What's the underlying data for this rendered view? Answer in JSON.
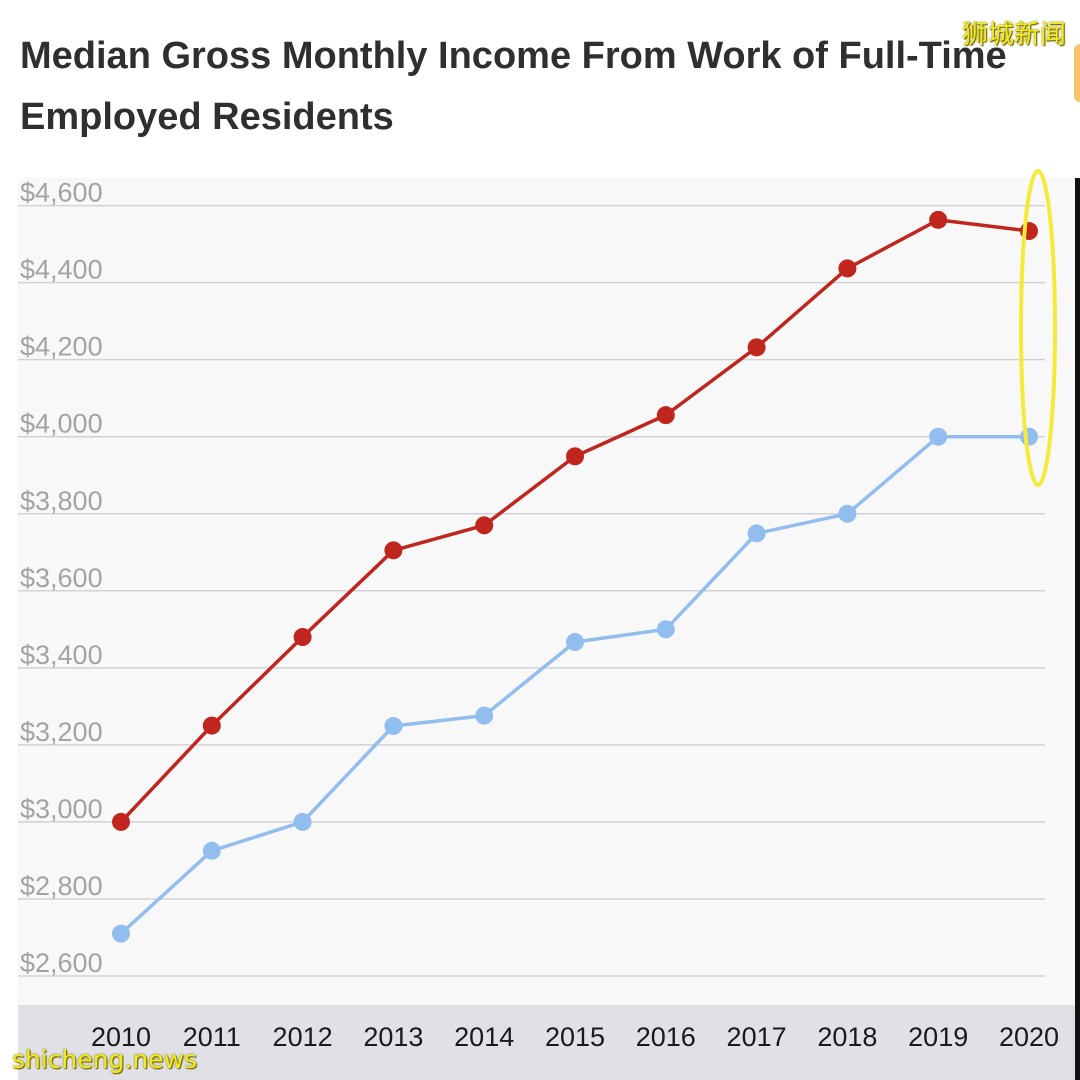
{
  "watermark_top": "狮城新闻",
  "watermark_bottom": "shicheng.news",
  "colors": {
    "series_1": "#c0251e",
    "series_2": "#92bdef",
    "highlight": "#f4ea3a",
    "grid": "#d2d2d6",
    "tick_label": "#a3a3a3",
    "plot_bg": "#f8f8f9",
    "axis_band": "#e0e0e6"
  },
  "chart_data": {
    "type": "line",
    "title": "Median Gross Monthly Income From Work of Full-Time Employed Residents",
    "xlabel": "",
    "ylabel": "",
    "x": [
      "2010",
      "2011",
      "2012",
      "2013",
      "2014",
      "2015",
      "2016",
      "2017",
      "2018",
      "2019",
      "2020"
    ],
    "y_ticks": [
      "$2,600",
      "$2,800",
      "$3,000",
      "$3,200",
      "$3,400",
      "$3,600",
      "$3,800",
      "$4,000",
      "$4,200",
      "$4,400",
      "$4,600"
    ],
    "ylim": [
      2600,
      4600
    ],
    "grid": true,
    "legend": "none",
    "series": [
      {
        "values": [
          3000,
          3250,
          3480,
          3705,
          3770,
          3949,
          4056,
          4232,
          4437,
          4563,
          4534
        ],
        "color": "#c0251e"
      },
      {
        "values": [
          2710,
          2925,
          3000,
          3249,
          3276,
          3467,
          3500,
          3749,
          3800,
          4000,
          4000
        ],
        "color": "#92bdef"
      }
    ],
    "annotations": [
      {
        "type": "ellipse-highlight",
        "target_x": "2020",
        "color": "#f4ea3a"
      }
    ]
  }
}
